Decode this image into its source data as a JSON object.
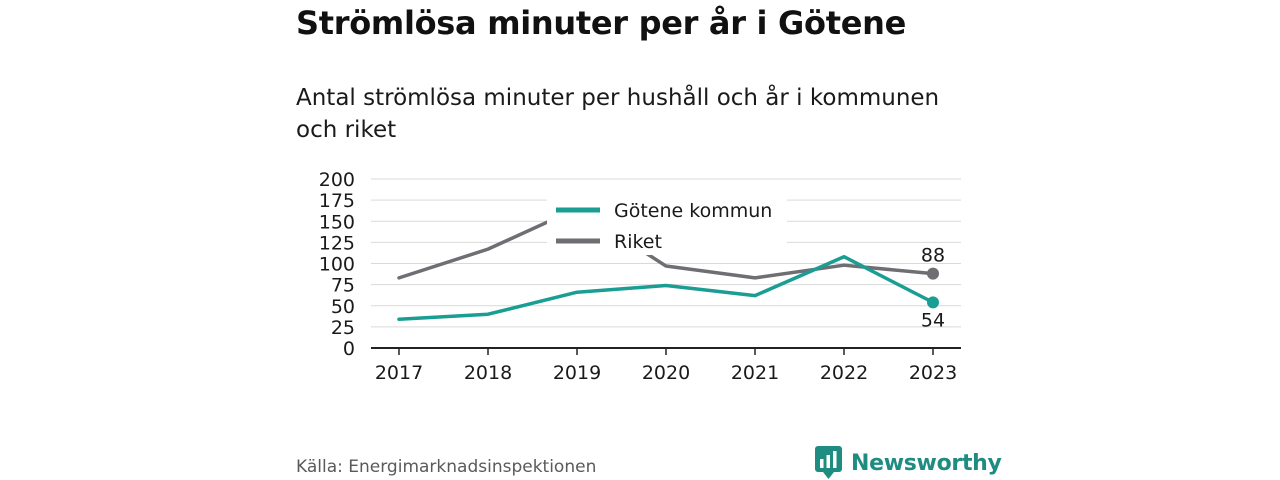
{
  "title": "Strömlösa minuter per år i Götene",
  "subtitle": "Antal strömlösa minuter per hushåll och år i kommunen och riket",
  "source": "Källa: Energimarknadsinspektionen",
  "brand": {
    "name": "Newsworthy",
    "icon": "newsworthy-logo-icon",
    "color": "#1f8c82"
  },
  "chart_data": {
    "type": "line",
    "x": [
      "2017",
      "2018",
      "2019",
      "2020",
      "2021",
      "2022",
      "2023"
    ],
    "yticks": [
      0,
      25,
      50,
      75,
      100,
      125,
      150,
      175,
      200
    ],
    "ylim": [
      0,
      200
    ],
    "grid": true,
    "legend_position": "top-center",
    "series": [
      {
        "name": "Götene kommun",
        "color": "#1a9e94",
        "values": [
          34,
          40,
          66,
          74,
          62,
          108,
          54
        ],
        "end_label": "54"
      },
      {
        "name": "Riket",
        "color": "#6e6e73",
        "values": [
          83,
          117,
          165,
          97,
          83,
          98,
          88
        ],
        "end_label": "88"
      }
    ]
  }
}
